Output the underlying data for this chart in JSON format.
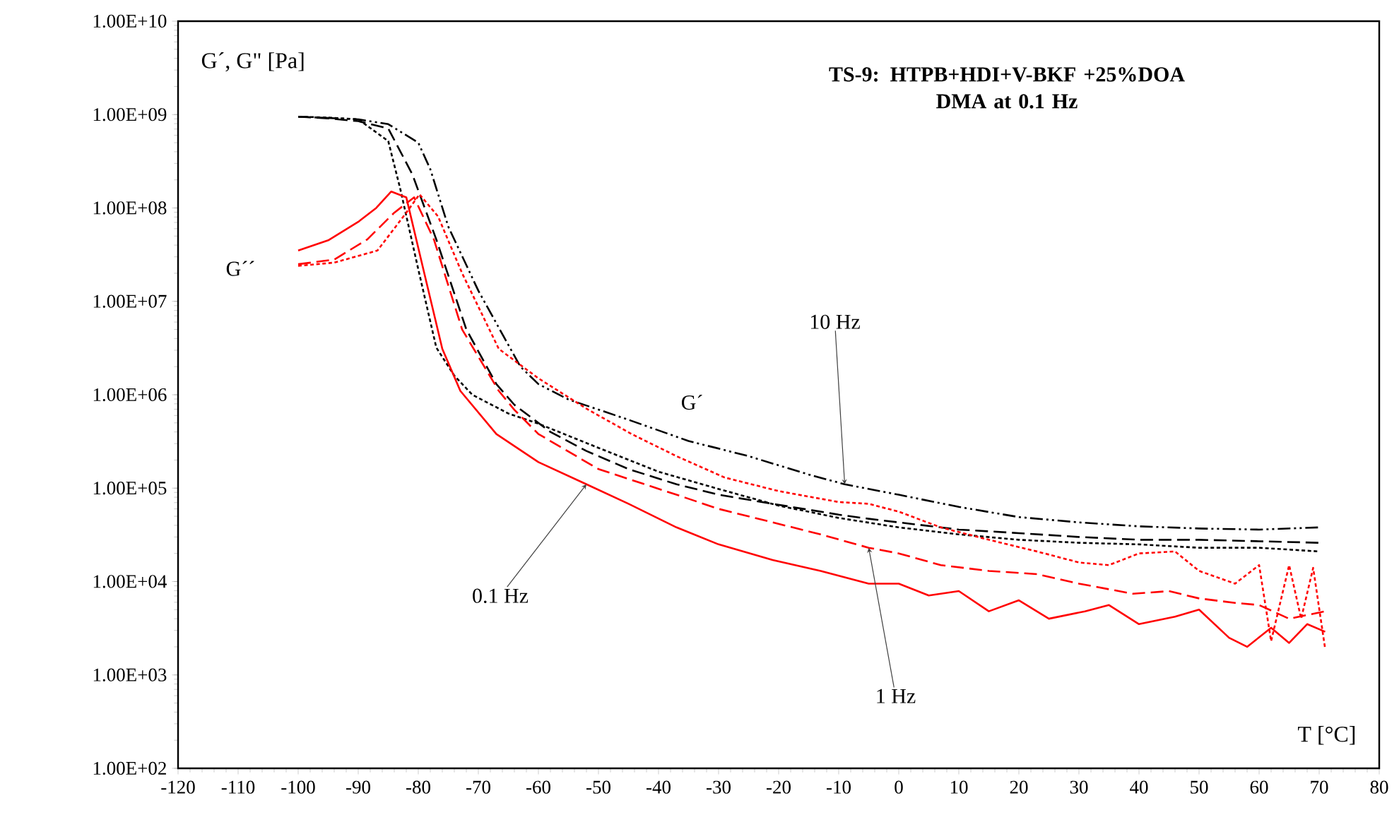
{
  "chart_data": {
    "type": "line",
    "title": "TS-9: HTPB+HDI+V-BKF +25%DOA",
    "subtitle": "DMA at 0.1 Hz",
    "xlabel": "T [°C]",
    "ylabel": "G´, G\" [Pa]",
    "log": "y",
    "xlim": [
      -120,
      80
    ],
    "xticks": [
      -120,
      -110,
      -100,
      -90,
      -80,
      -70,
      -60,
      -50,
      -40,
      -30,
      -20,
      -10,
      0,
      10,
      20,
      30,
      40,
      50,
      60,
      70,
      80
    ],
    "ylim": [
      100,
      10000000000
    ],
    "yticks": [
      {
        "value": 100,
        "label": "1.00E+02"
      },
      {
        "value": 1000,
        "label": "1.00E+03"
      },
      {
        "value": 10000,
        "label": "1.00E+04"
      },
      {
        "value": 100000,
        "label": "1.00E+05"
      },
      {
        "value": 1000000,
        "label": "1.00E+06"
      },
      {
        "value": 10000000,
        "label": "1.00E+07"
      },
      {
        "value": 100000000,
        "label": "1.00E+08"
      },
      {
        "value": 1000000000,
        "label": "1.00E+09"
      },
      {
        "value": 10000000000,
        "label": "1.00E+10"
      }
    ],
    "marker": "none",
    "series": [
      {
        "color": "#000000",
        "line_style": "dotted",
        "x": [
          -100,
          -95,
          -90,
          -85,
          -83,
          -80,
          -77,
          -74,
          -71,
          -65,
          -60,
          -50,
          -40,
          -30,
          -20,
          -10,
          0,
          10,
          20,
          30,
          40,
          50,
          60,
          70
        ],
        "values": [
          950000000.0,
          930000000.0,
          890000000.0,
          520000000.0,
          160000000.0,
          22000000.0,
          3200000.0,
          1600000.0,
          1000000.0,
          630000.0,
          490000.0,
          270000.0,
          150000.0,
          98000.0,
          65000.0,
          48000.0,
          38000.0,
          32000.0,
          28000.0,
          26000.0,
          25000.0,
          23000.0,
          23000.0,
          21000.0
        ]
      },
      {
        "color": "#000000",
        "line_style": "dashed",
        "x": [
          -100,
          -95,
          -90,
          -85,
          -81,
          -77,
          -72,
          -67,
          -64,
          -58,
          -52,
          -45,
          -37,
          -30,
          -21,
          -10,
          -5,
          0,
          10,
          20,
          30,
          40,
          50,
          60,
          70
        ],
        "values": [
          950000000.0,
          910000000.0,
          850000000.0,
          710000000.0,
          230000000.0,
          46000000.0,
          5000000.0,
          1300000.0,
          780000.0,
          400000.0,
          250000.0,
          160000.0,
          110000.0,
          85000.0,
          68000.0,
          52000.0,
          47000.0,
          43000.0,
          36000.0,
          33000.0,
          30000.0,
          28000.0,
          28000.0,
          27000.0,
          26000.0
        ]
      },
      {
        "color": "#000000",
        "line_style": "dashdotdotted",
        "x": [
          -100,
          -90,
          -85,
          -80,
          -78,
          -75,
          -70,
          -63,
          -60,
          -55,
          -45,
          -35,
          -25,
          -15,
          -9,
          0,
          10,
          20,
          30,
          40,
          50,
          60,
          70
        ],
        "values": [
          950000000.0,
          890000000.0,
          790000000.0,
          500000000.0,
          260000000.0,
          63000000.0,
          13000000.0,
          2000000.0,
          1300000.0,
          890000.0,
          540000.0,
          320000.0,
          220000.0,
          140000.0,
          110000.0,
          85000.0,
          63000.0,
          49000.0,
          43000.0,
          39000.0,
          37000.0,
          36000.0,
          38000.0
        ]
      },
      {
        "color": "#ff0000",
        "line_style": "solid",
        "x": [
          -100,
          -95,
          -90,
          -87,
          -84.5,
          -82,
          -79,
          -76,
          -73,
          -67,
          -60,
          -52,
          -45,
          -37,
          -30,
          -21,
          -13,
          -5,
          0,
          5,
          10,
          15,
          20,
          25,
          31,
          35,
          40,
          46,
          50,
          55,
          58,
          62,
          65,
          68,
          71
        ],
        "values": [
          35000000.0,
          45000000.0,
          71000000.0,
          100000000.0,
          150000000.0,
          130000000.0,
          20000000.0,
          3100000.0,
          1100000.0,
          380000.0,
          190000.0,
          110000.0,
          68000.0,
          38000.0,
          25000.0,
          17000.0,
          13000.0,
          9500.0,
          9500.0,
          7100.0,
          7900.0,
          4800.0,
          6300.0,
          4000.0,
          4800.0,
          5600.0,
          3500.0,
          4200.0,
          5000.0,
          2500.0,
          2000.0,
          3200.0,
          2200.0,
          3500.0,
          2900.0
        ]
      },
      {
        "color": "#ff0000",
        "line_style": "dashed",
        "x": [
          -100,
          -94,
          -88.5,
          -84,
          -80.7,
          -77.4,
          -72.7,
          -66.6,
          -64,
          -60,
          -50,
          -37,
          -30,
          -21,
          -13,
          -5,
          0,
          7,
          15,
          23,
          30,
          39,
          45,
          50,
          56,
          60,
          65,
          71
        ],
        "values": [
          25000000.0,
          28000000.0,
          46000000.0,
          89000000.0,
          130000000.0,
          46000000.0,
          5000000.0,
          1100000.0,
          690000.0,
          380000.0,
          160000.0,
          85000.0,
          60000.0,
          43000.0,
          32000.0,
          23000.0,
          20000.0,
          15000.0,
          13000.0,
          12000.0,
          9500.0,
          7400.0,
          7900.0,
          6600.0,
          5900.0,
          5600.0,
          4000.0,
          4800.0
        ]
      },
      {
        "color": "#ff0000",
        "line_style": "dotted",
        "x": [
          -100,
          -94,
          -86.8,
          -82,
          -79.8,
          -76.7,
          -72.7,
          -66.6,
          -60,
          -52,
          -44.5,
          -37,
          -29,
          -20,
          -10,
          -5,
          0,
          7,
          15,
          23,
          30,
          35,
          40,
          46,
          50,
          56,
          60,
          62,
          65,
          67,
          69,
          71
        ],
        "values": [
          24000000.0,
          26000000.0,
          35000000.0,
          89000000.0,
          140000000.0,
          81000000.0,
          20000000.0,
          3100000.0,
          1500000.0,
          710000.0,
          380000.0,
          220000.0,
          130000.0,
          93000.0,
          71000.0,
          68000.0,
          56000.0,
          38000.0,
          28000.0,
          21000.0,
          16000.0,
          15000.0,
          20000.0,
          21000.0,
          13000.0,
          9500.0,
          15000.0,
          2300.0,
          15000.0,
          4000.0,
          14000.0,
          1900.0
        ]
      }
    ],
    "annotations": [
      "G´´",
      "G´",
      {
        "text": "10 Hz",
        "x": -9,
        "y": 110000.0
      },
      {
        "text": "0.1 Hz",
        "x": -52,
        "y": 110000.0
      },
      {
        "text": "1 Hz",
        "x": -5,
        "y": 23000.0
      }
    ]
  }
}
